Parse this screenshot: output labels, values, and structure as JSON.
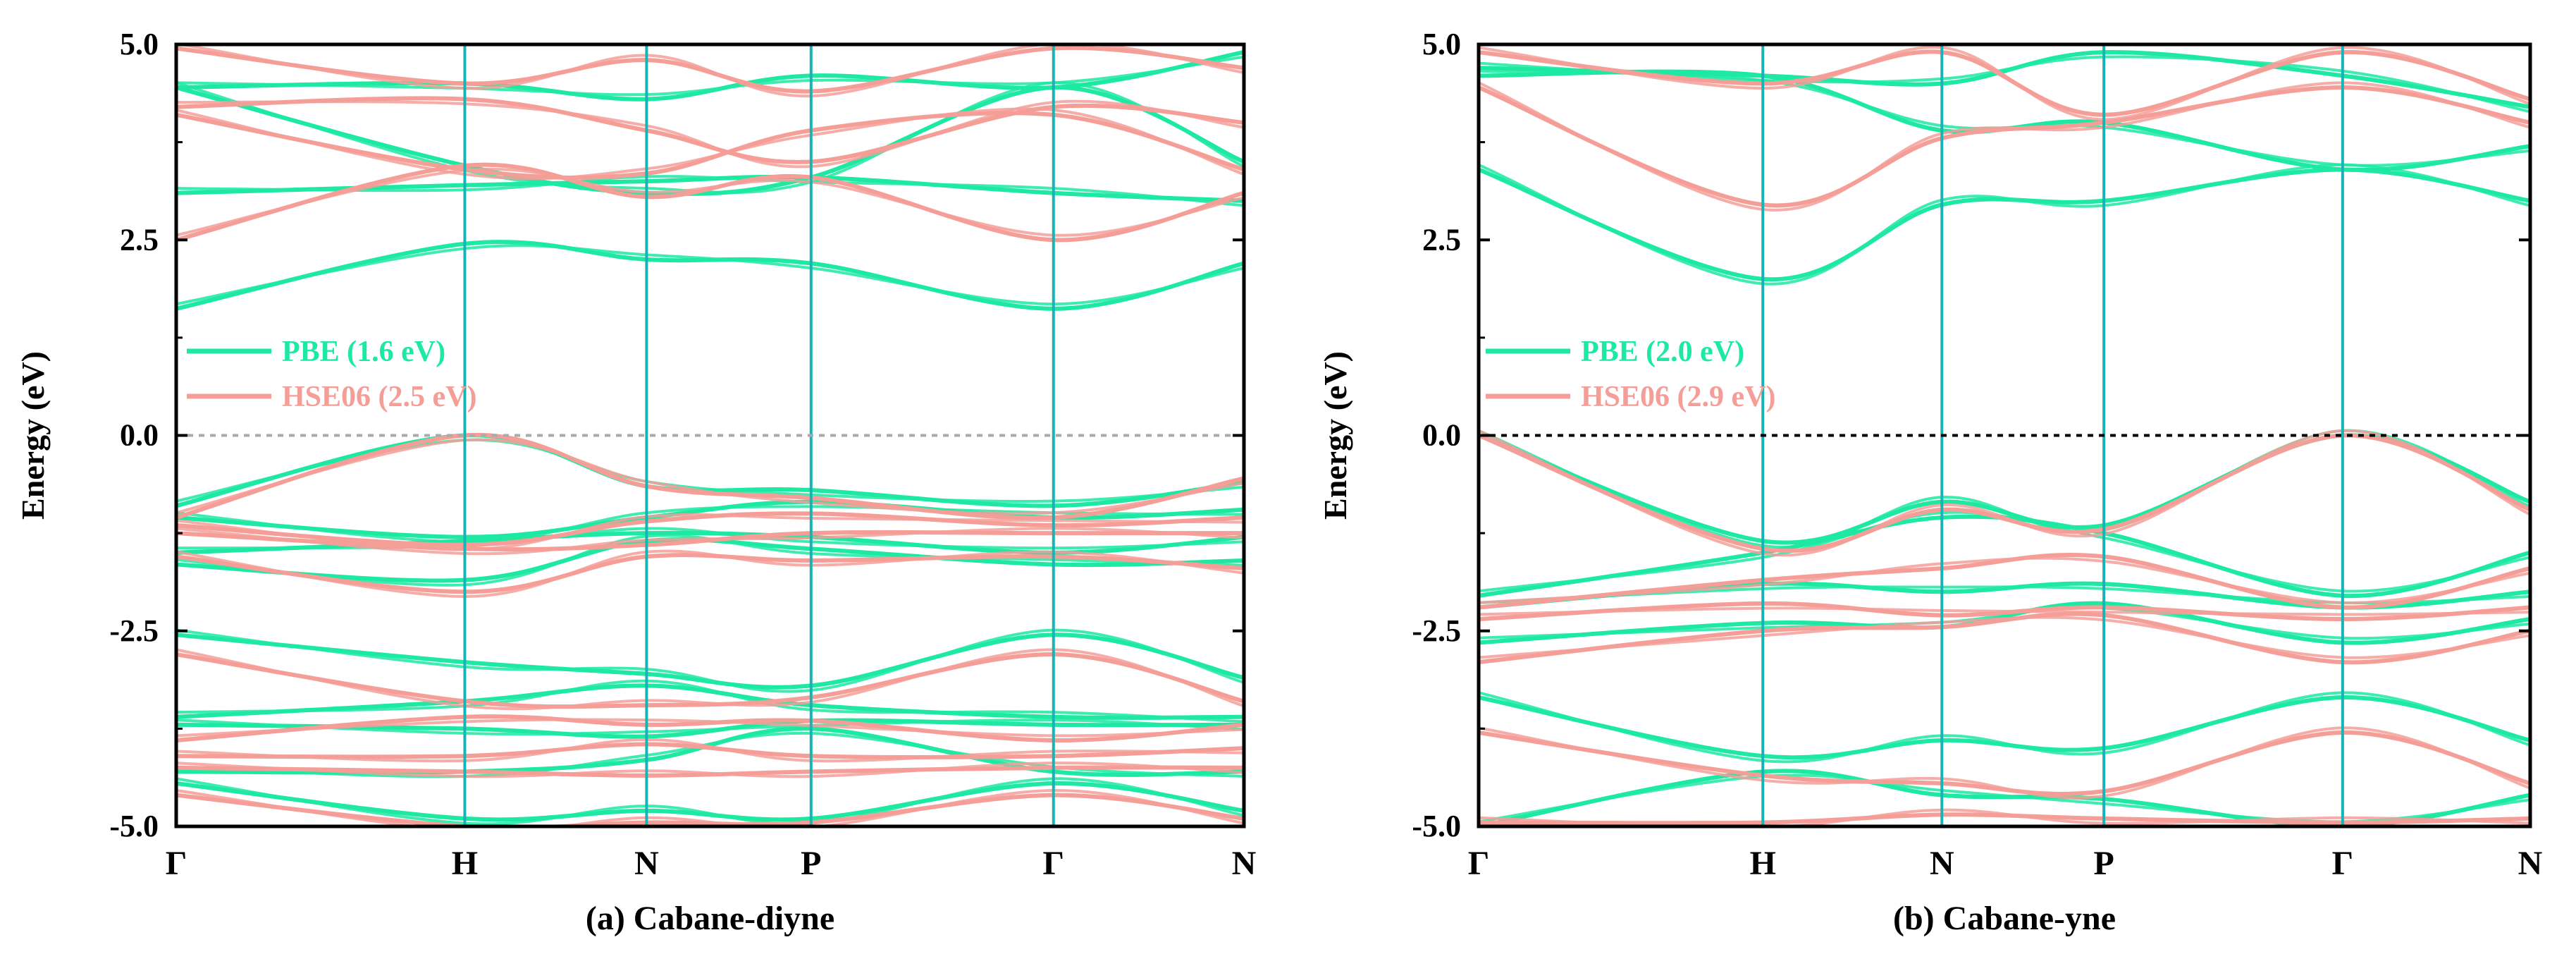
{
  "style": {
    "pbe_color": "#1de9a2",
    "hse_color": "#f59e98",
    "symline_color": "#1ab3b3",
    "fermi_color_a": "#aaaaaa",
    "fermi_color_b": "#000000",
    "frame_color": "#000000"
  },
  "chart_data": [
    {
      "type": "line",
      "panel": "a",
      "title": "(a) Cabane-diyne",
      "ylabel": "Energy (eV)",
      "ylim": [
        -5.0,
        5.0
      ],
      "y_ticks": [
        5.0,
        2.5,
        0.0,
        -2.5,
        -5.0
      ],
      "y_tick_labels": [
        "5.0",
        "2.5",
        "0.0",
        "-2.5",
        "-5.0"
      ],
      "kpoints": [
        {
          "label": "Γ",
          "x": 0.0
        },
        {
          "label": "H",
          "x": 1.0
        },
        {
          "label": "N",
          "x": 1.63
        },
        {
          "label": "P",
          "x": 2.2
        },
        {
          "label": "Γ",
          "x": 3.04
        },
        {
          "label": "N",
          "x": 3.7
        }
      ],
      "fermi_level": 0.0,
      "legend": {
        "position": "center-left",
        "entries": [
          {
            "name": "PBE (1.6 eV)",
            "series": "PBE"
          },
          {
            "name": "HSE06 (2.5 eV)",
            "series": "HSE06"
          }
        ]
      },
      "series": [
        {
          "name": "PBE",
          "color_key": "pbe_color",
          "bands": [
            [
              1.62,
              2.45,
              2.25,
              2.2,
              1.62,
              2.2
            ],
            [
              3.1,
              3.2,
              3.25,
              3.3,
              3.1,
              3.0
            ],
            [
              4.45,
              3.45,
              3.1,
              3.3,
              4.45,
              3.5
            ],
            [
              4.45,
              4.5,
              4.3,
              4.6,
              4.45,
              4.9
            ],
            [
              -0.9,
              0.0,
              -0.65,
              -0.7,
              -0.9,
              -0.6
            ],
            [
              -1.05,
              -1.3,
              -1.05,
              -0.85,
              -1.05,
              -0.95
            ],
            [
              -1.5,
              -1.35,
              -1.25,
              -1.3,
              -1.5,
              -1.3
            ],
            [
              -1.65,
              -1.85,
              -1.35,
              -1.45,
              -1.65,
              -1.6
            ],
            [
              -2.55,
              -2.9,
              -3.05,
              -3.2,
              -2.55,
              -3.1
            ],
            [
              -3.6,
              -3.4,
              -3.2,
              -3.45,
              -3.6,
              -3.6
            ],
            [
              -3.7,
              -3.75,
              -3.85,
              -3.65,
              -3.7,
              -3.7
            ],
            [
              -4.3,
              -4.3,
              -4.15,
              -3.75,
              -4.3,
              -4.3
            ],
            [
              -4.45,
              -4.9,
              -4.8,
              -4.9,
              -4.45,
              -4.8
            ]
          ]
        },
        {
          "name": "HSE06",
          "color_key": "hse_color",
          "bands": [
            [
              2.5,
              3.45,
              3.05,
              3.3,
              2.5,
              3.1
            ],
            [
              4.1,
              3.4,
              3.35,
              3.9,
              4.1,
              3.4
            ],
            [
              4.2,
              4.3,
              3.9,
              3.5,
              4.2,
              4.0
            ],
            [
              4.95,
              4.5,
              4.8,
              4.4,
              4.95,
              4.7
            ],
            [
              -1.05,
              0.0,
              -0.65,
              -0.8,
              -1.05,
              -0.55
            ],
            [
              -1.15,
              -1.4,
              -1.1,
              -1.0,
              -1.15,
              -1.05
            ],
            [
              -1.25,
              -1.45,
              -1.4,
              -1.25,
              -1.25,
              -1.25
            ],
            [
              -1.55,
              -2.0,
              -1.55,
              -1.6,
              -1.55,
              -1.7
            ],
            [
              -2.8,
              -3.4,
              -3.45,
              -3.35,
              -2.8,
              -3.4
            ],
            [
              -3.9,
              -3.6,
              -3.7,
              -3.65,
              -3.9,
              -3.7
            ],
            [
              -4.1,
              -4.1,
              -3.95,
              -4.1,
              -4.1,
              -4.0
            ],
            [
              -4.25,
              -4.3,
              -4.35,
              -4.3,
              -4.25,
              -4.25
            ],
            [
              -4.6,
              -5.0,
              -4.95,
              -4.95,
              -4.6,
              -4.9
            ]
          ]
        }
      ]
    },
    {
      "type": "line",
      "panel": "b",
      "title": "(b) Cabane-yne",
      "ylabel": "Energy (eV)",
      "ylim": [
        -5.0,
        5.0
      ],
      "y_ticks": [
        5.0,
        2.5,
        0.0,
        -2.5,
        -5.0
      ],
      "y_tick_labels": [
        "5.0",
        "2.5",
        "0.0",
        "-2.5",
        "-5.0"
      ],
      "kpoints": [
        {
          "label": "Γ",
          "x": 0.0
        },
        {
          "label": "H",
          "x": 1.0
        },
        {
          "label": "N",
          "x": 1.63
        },
        {
          "label": "P",
          "x": 2.2
        },
        {
          "label": "Γ",
          "x": 3.04
        },
        {
          "label": "N",
          "x": 3.7
        }
      ],
      "fermi_level": 0.0,
      "legend": {
        "position": "center-left",
        "entries": [
          {
            "name": "PBE (2.0 eV)",
            "series": "PBE"
          },
          {
            "name": "HSE06 (2.9 eV)",
            "series": "HSE06"
          }
        ]
      },
      "series": [
        {
          "name": "PBE",
          "color_key": "pbe_color",
          "bands": [
            [
              3.4,
              2.0,
              2.95,
              3.0,
              3.4,
              3.0
            ],
            [
              4.6,
              4.6,
              3.9,
              4.0,
              3.4,
              3.7
            ],
            [
              4.7,
              4.6,
              4.5,
              4.9,
              4.6,
              4.2
            ],
            [
              0.0,
              -1.35,
              -0.85,
              -1.15,
              0.0,
              -0.85
            ],
            [
              -2.05,
              -1.5,
              -1.05,
              -1.25,
              -2.05,
              -1.5
            ],
            [
              -2.2,
              -1.9,
              -2.0,
              -1.9,
              -2.2,
              -2.0
            ],
            [
              -2.65,
              -2.4,
              -2.45,
              -2.15,
              -2.65,
              -2.35
            ],
            [
              -3.35,
              -4.1,
              -3.9,
              -4.0,
              -3.35,
              -3.9
            ],
            [
              -5.0,
              -4.3,
              -4.6,
              -4.65,
              -5.0,
              -4.6
            ]
          ]
        },
        {
          "name": "HSE06",
          "color_key": "hse_color",
          "bands": [
            [
              4.45,
              2.95,
              3.8,
              4.0,
              4.45,
              4.0
            ],
            [
              4.9,
              4.5,
              4.9,
              4.1,
              4.9,
              4.3
            ],
            [
              0.0,
              -1.45,
              -0.95,
              -1.2,
              0.0,
              -0.95
            ],
            [
              -2.2,
              -1.85,
              -1.7,
              -1.55,
              -2.2,
              -1.7
            ],
            [
              -2.35,
              -2.15,
              -2.3,
              -2.2,
              -2.35,
              -2.2
            ],
            [
              -2.9,
              -2.5,
              -2.45,
              -2.3,
              -2.9,
              -2.5
            ],
            [
              -3.8,
              -4.35,
              -4.45,
              -4.55,
              -3.8,
              -4.45
            ],
            [
              -4.95,
              -4.95,
              -4.85,
              -4.9,
              -4.95,
              -4.9
            ]
          ]
        }
      ]
    }
  ]
}
